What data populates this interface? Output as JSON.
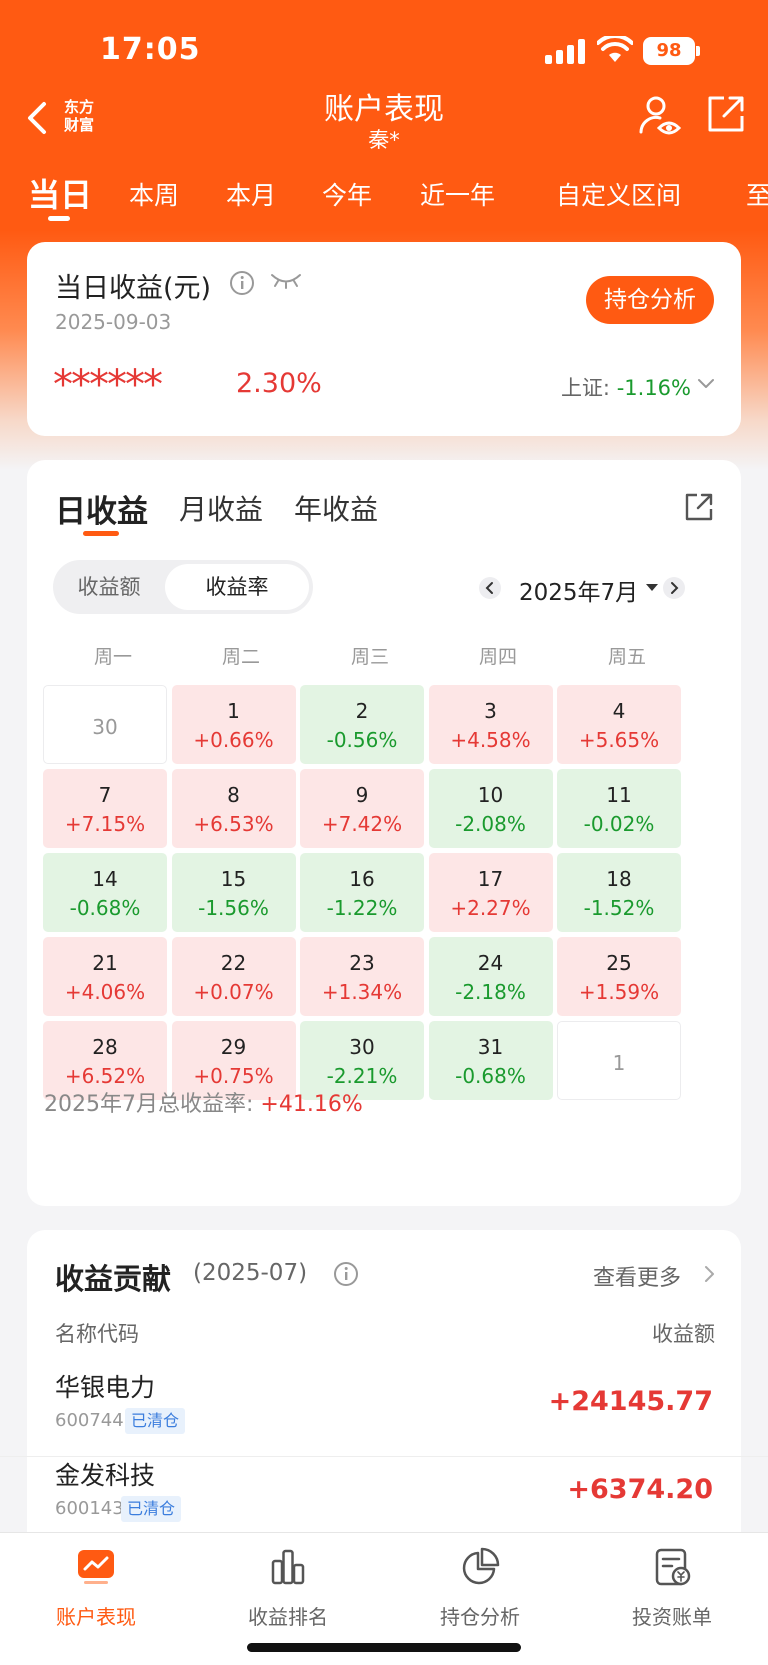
{
  "status_bar": {
    "time": "17:05",
    "battery": "98"
  },
  "nav": {
    "logo_line1": "东方",
    "logo_line2": "财富",
    "title": "账户表现",
    "subtitle": "秦*"
  },
  "period_tabs": [
    "当日",
    "本周",
    "本月",
    "今年",
    "近一年",
    "自定义区间",
    "至"
  ],
  "today": {
    "label": "当日收益(元)",
    "date": "2025-09-03",
    "button": "持仓分析",
    "masked_amount": "******",
    "return_pct": "2.30%",
    "index_label": "上证:",
    "index_value": "-1.16%"
  },
  "daily": {
    "tabs": [
      "日收益",
      "月收益",
      "年收益"
    ],
    "toggle": [
      "收益额",
      "收益率"
    ],
    "month": "2025年7月",
    "weekdays": [
      "周一",
      "周二",
      "周三",
      "周四",
      "周五"
    ],
    "cells": [
      {
        "day": "30",
        "value": "",
        "trend": "empty"
      },
      {
        "day": "1",
        "value": "+0.66%",
        "trend": "up"
      },
      {
        "day": "2",
        "value": "-0.56%",
        "trend": "down"
      },
      {
        "day": "3",
        "value": "+4.58%",
        "trend": "up"
      },
      {
        "day": "4",
        "value": "+5.65%",
        "trend": "up"
      },
      {
        "day": "7",
        "value": "+7.15%",
        "trend": "up"
      },
      {
        "day": "8",
        "value": "+6.53%",
        "trend": "up"
      },
      {
        "day": "9",
        "value": "+7.42%",
        "trend": "up"
      },
      {
        "day": "10",
        "value": "-2.08%",
        "trend": "down"
      },
      {
        "day": "11",
        "value": "-0.02%",
        "trend": "down"
      },
      {
        "day": "14",
        "value": "-0.68%",
        "trend": "down"
      },
      {
        "day": "15",
        "value": "-1.56%",
        "trend": "down"
      },
      {
        "day": "16",
        "value": "-1.22%",
        "trend": "down"
      },
      {
        "day": "17",
        "value": "+2.27%",
        "trend": "up"
      },
      {
        "day": "18",
        "value": "-1.52%",
        "trend": "down"
      },
      {
        "day": "21",
        "value": "+4.06%",
        "trend": "up"
      },
      {
        "day": "22",
        "value": "+0.07%",
        "trend": "up"
      },
      {
        "day": "23",
        "value": "+1.34%",
        "trend": "up"
      },
      {
        "day": "24",
        "value": "-2.18%",
        "trend": "down"
      },
      {
        "day": "25",
        "value": "+1.59%",
        "trend": "up"
      },
      {
        "day": "28",
        "value": "+6.52%",
        "trend": "up"
      },
      {
        "day": "29",
        "value": "+0.75%",
        "trend": "up"
      },
      {
        "day": "30",
        "value": "-2.21%",
        "trend": "down"
      },
      {
        "day": "31",
        "value": "-0.68%",
        "trend": "down"
      },
      {
        "day": "1",
        "value": "",
        "trend": "empty"
      }
    ],
    "total_label": "2025年7月总收益率:",
    "total_value": "+41.16%"
  },
  "contribution": {
    "title": "收益贡献",
    "range": "(2025-07)",
    "more": "查看更多",
    "col_name": "名称代码",
    "col_amount": "收益额",
    "rows": [
      {
        "name": "华银电力",
        "code": "600744",
        "tag": "已清仓",
        "amount": "+24145.77"
      },
      {
        "name": "金发科技",
        "code": "600143",
        "tag": "已清仓",
        "amount": "+6374.20"
      }
    ]
  },
  "tabbar": [
    {
      "label": "账户表现",
      "icon": "chart-screen-icon",
      "active": true
    },
    {
      "label": "收益排名",
      "icon": "bar-chart-icon",
      "active": false
    },
    {
      "label": "持仓分析",
      "icon": "pie-chart-icon",
      "active": false
    },
    {
      "label": "投资账单",
      "icon": "bill-icon",
      "active": false
    }
  ],
  "colors": {
    "brand": "#ff5a12",
    "up": "#e53935",
    "down": "#1a9a2e"
  }
}
